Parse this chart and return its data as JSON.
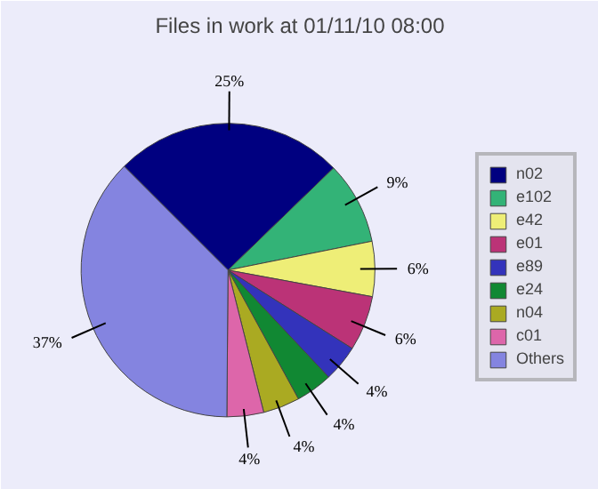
{
  "chart_data": {
    "type": "pie",
    "title": "Files in work at 01/11/10 08:00",
    "categories": [
      "n02",
      "e102",
      "e42",
      "e01",
      "e89",
      "e24",
      "n04",
      "c01",
      "Others"
    ],
    "values": [
      25,
      9,
      6,
      6,
      4,
      4,
      4,
      4,
      37
    ],
    "value_labels": [
      "25%",
      "9%",
      "6%",
      "6%",
      "4%",
      "4%",
      "4%",
      "4%",
      "37%"
    ],
    "colors": [
      "#000080",
      "#33b377",
      "#eeee77",
      "#bb3377",
      "#3333bb",
      "#118833",
      "#aaaa22",
      "#dd66aa",
      "#8484e0"
    ],
    "legend": "right"
  }
}
